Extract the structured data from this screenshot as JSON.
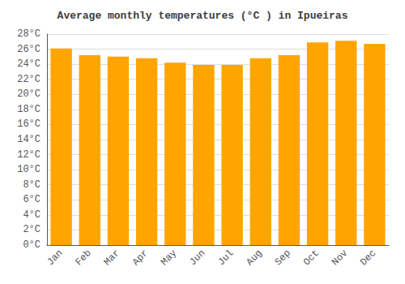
{
  "chart_data": {
    "type": "bar",
    "title": "Average monthly temperatures (°C ) in Ipueiras",
    "categories": [
      "Jan",
      "Feb",
      "Mar",
      "Apr",
      "May",
      "Jun",
      "Jul",
      "Aug",
      "Sep",
      "Oct",
      "Nov",
      "Dec"
    ],
    "values": [
      26.1,
      25.2,
      25.0,
      24.8,
      24.2,
      23.9,
      23.9,
      24.8,
      25.2,
      26.9,
      27.1,
      26.7
    ],
    "color": "#FFA500",
    "ylim": [
      0,
      28
    ],
    "yticks": [
      {
        "value": 0,
        "label": "0°C"
      },
      {
        "value": 2,
        "label": "2°C"
      },
      {
        "value": 4,
        "label": "4°C"
      },
      {
        "value": 6,
        "label": "6°C"
      },
      {
        "value": 8,
        "label": "8°C"
      },
      {
        "value": 10,
        "label": "10°C"
      },
      {
        "value": 12,
        "label": "12°C"
      },
      {
        "value": 14,
        "label": "14°C"
      },
      {
        "value": 16,
        "label": "16°C"
      },
      {
        "value": 18,
        "label": "18°C"
      },
      {
        "value": 20,
        "label": "20°C"
      },
      {
        "value": 22,
        "label": "22°C"
      },
      {
        "value": 24,
        "label": "24°C"
      },
      {
        "value": 26,
        "label": "26°C"
      },
      {
        "value": 28,
        "label": "28°C"
      }
    ],
    "grid": true
  }
}
